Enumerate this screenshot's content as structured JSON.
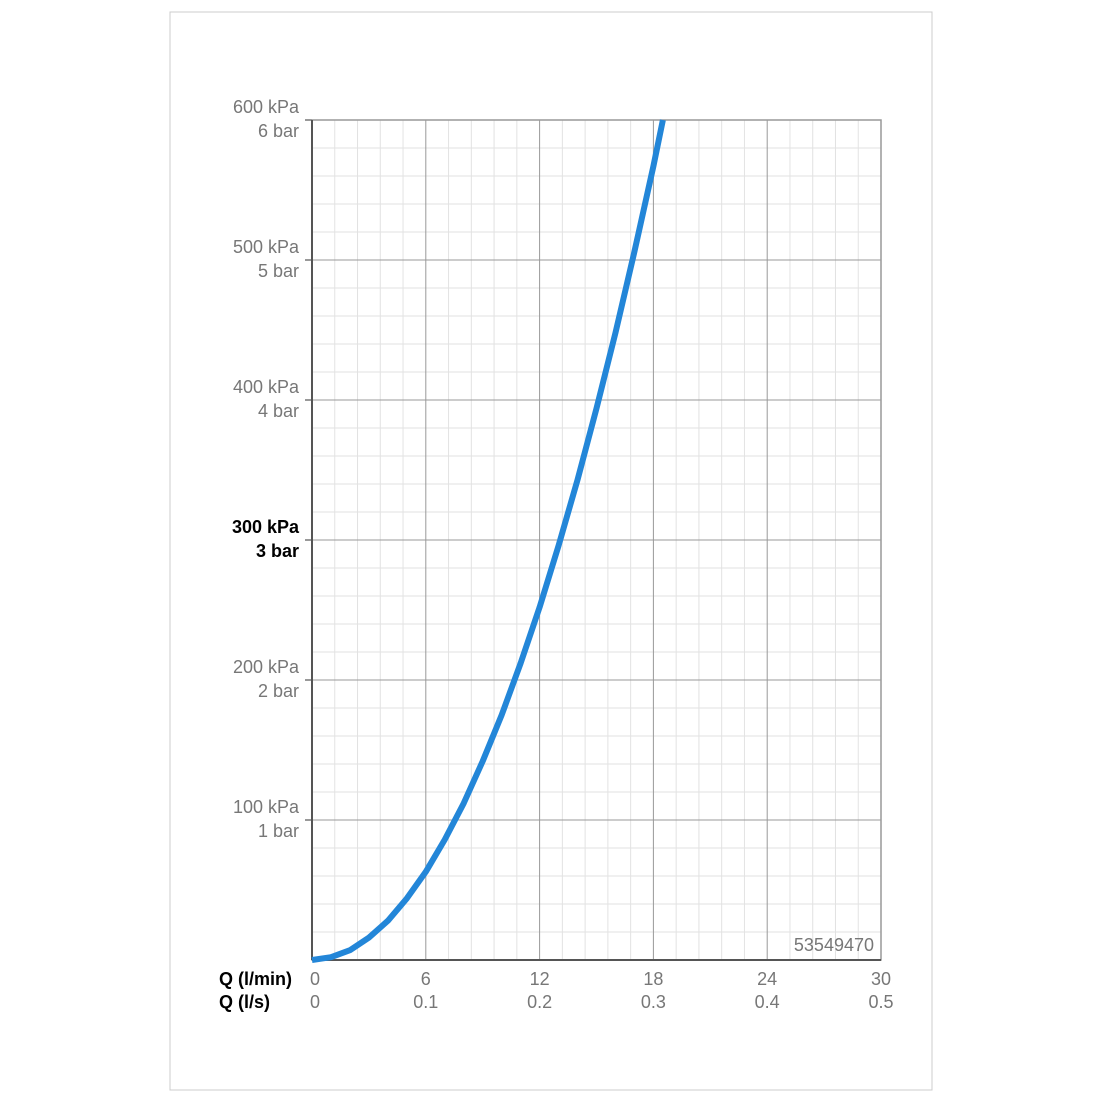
{
  "chart_data": {
    "type": "line",
    "xlabel": "Q (l/min)",
    "x2label": "Q (l/s)",
    "annotation": "53549470",
    "x": [
      0,
      1,
      2,
      3,
      4,
      5,
      6,
      7,
      8,
      9,
      10,
      11,
      12,
      13,
      14,
      15,
      16,
      17,
      18,
      18.5
    ],
    "series": [
      {
        "color": "#2386d8",
        "values": [
          0,
          2,
          7,
          16,
          28,
          44,
          63,
          86,
          112,
          142,
          175,
          212,
          252,
          296,
          343,
          394,
          448,
          506,
          567,
          600
        ]
      }
    ],
    "xlim": [
      0,
      30
    ],
    "xticks": [
      0,
      6,
      12,
      18,
      24,
      30
    ],
    "x2lim": [
      0,
      0.5
    ],
    "x2ticks": [
      0,
      0.1,
      0.2,
      0.3,
      0.4,
      0.5
    ],
    "ylim": [
      0,
      600
    ],
    "yticks": [
      {
        "value": 100,
        "label": "100 kPa"
      },
      {
        "value": 200,
        "label": "200 kPa"
      },
      {
        "value": 300,
        "label": "300 kPa"
      },
      {
        "value": 400,
        "label": "400 kPa"
      },
      {
        "value": 500,
        "label": "500 kPa"
      },
      {
        "value": 600,
        "label": "600 kPa"
      }
    ],
    "y2lim": [
      0,
      6
    ],
    "y2ticks": [
      {
        "value": 1,
        "label": "1 bar"
      },
      {
        "value": 2,
        "label": "2 bar"
      },
      {
        "value": 3,
        "label": "3 bar"
      },
      {
        "value": 4,
        "label": "4 bar"
      },
      {
        "value": 5,
        "label": "5 bar"
      },
      {
        "value": 6,
        "label": "6 bar"
      }
    ],
    "emphasized_ytick": 300,
    "grid": true,
    "minor_grid_divisions": 5
  }
}
